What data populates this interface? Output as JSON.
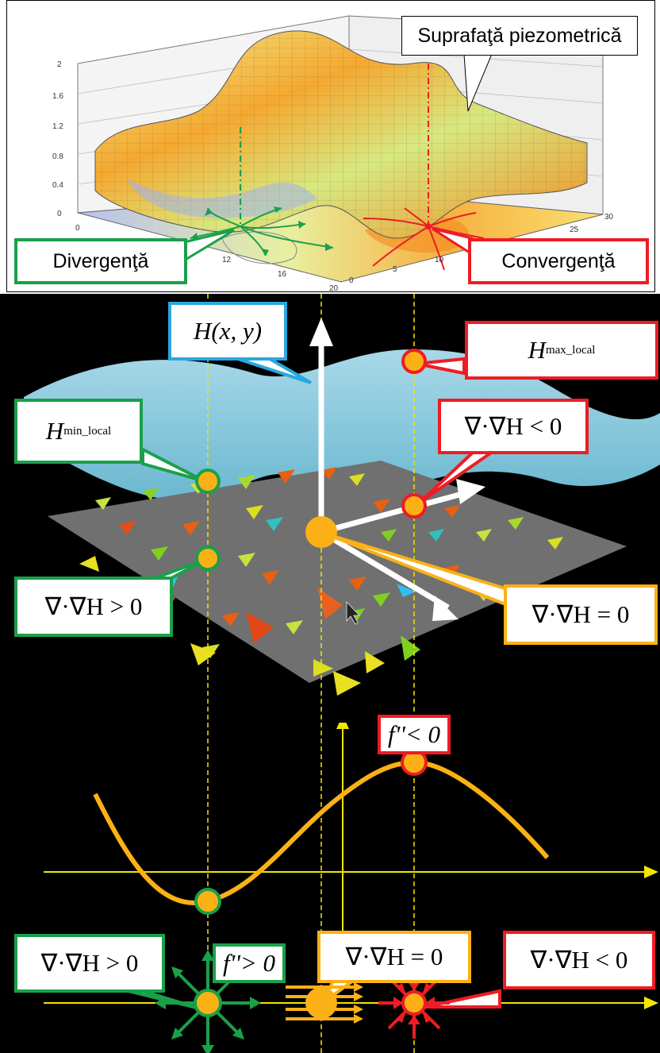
{
  "top_panel": {
    "surface_label": "Suprafaţă piezometrică",
    "divergence_label": "Divergenţă",
    "convergence_label": "Convergenţă",
    "z_ticks": [
      "2",
      "1.6",
      "1.2",
      "0.8",
      "0.4",
      "0"
    ],
    "x_ticks": [
      "0",
      "12",
      "16",
      "20"
    ],
    "y_ticks": [
      "0",
      "5",
      "10",
      "25",
      "30"
    ]
  },
  "middle_panel": {
    "h_function": "H(x, y)",
    "h_max_main": "H",
    "h_max_sub": "max_local",
    "h_min_main": "H",
    "h_min_sub": "min_local",
    "div_negative": "∇·∇H < 0",
    "div_zero": "∇·∇H = 0",
    "div_positive": "∇·∇H > 0"
  },
  "bottom_panel": {
    "f_second_negative": "f''< 0",
    "f_second_positive": "f''> 0",
    "div_positive": "∇·∇H > 0",
    "div_zero": "∇·∇H = 0",
    "div_negative": "∇·∇H < 0"
  },
  "colors": {
    "green": "#1aa04a",
    "red": "#ee1c24",
    "orange": "#fbb116",
    "blue": "#2aa7e0",
    "yellow": "#f2e600"
  }
}
